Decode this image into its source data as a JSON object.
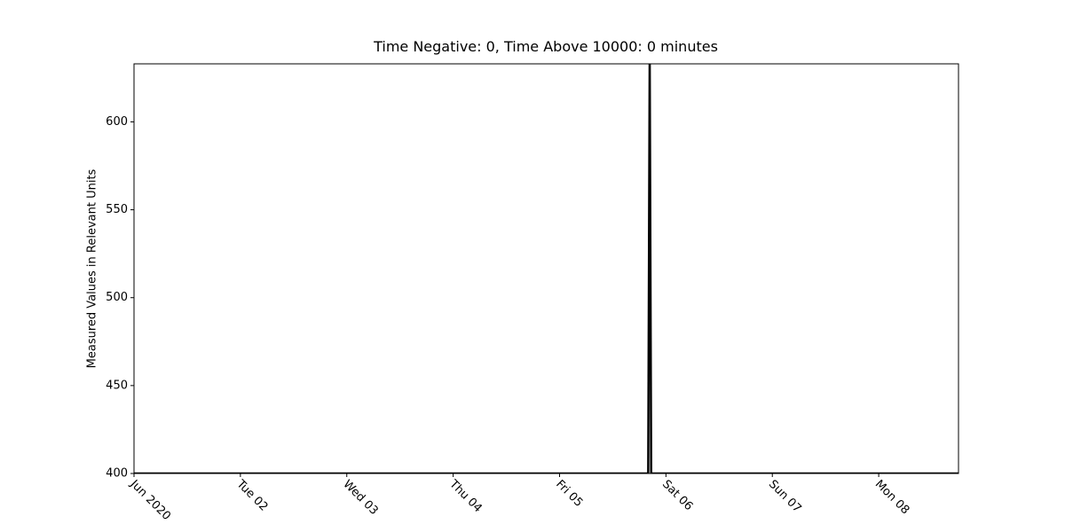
{
  "chart_data": {
    "type": "line",
    "title": "Time Negative: 0, Time Above 10000: 0 minutes",
    "y_label": "Measured Values in Relevant Units",
    "x": [
      "2020-06-01T00:00",
      "2020-06-05T20:00",
      "2020-06-05T20:20",
      "2020-06-05T20:40",
      "2020-06-08T18:00"
    ],
    "series": [
      {
        "color": "#000000",
        "values": [
          400,
          400,
          640,
          400,
          400
        ]
      }
    ],
    "xlim": [
      "2020-06-01T00:00",
      "2020-06-08T18:00"
    ],
    "xticks": [
      {
        "value": "2020-06-01T00:00",
        "label": "Jun 2020"
      },
      {
        "value": "2020-06-02T00:00",
        "label": "Tue 02"
      },
      {
        "value": "2020-06-03T00:00",
        "label": "Wed 03"
      },
      {
        "value": "2020-06-04T00:00",
        "label": "Thu 04"
      },
      {
        "value": "2020-06-05T00:00",
        "label": "Fri 05"
      },
      {
        "value": "2020-06-06T00:00",
        "label": "Sat 06"
      },
      {
        "value": "2020-06-07T00:00",
        "label": "Sun 07"
      },
      {
        "value": "2020-06-08T00:00",
        "label": "Mon 08"
      }
    ],
    "ylim": [
      400,
      633
    ],
    "yticks": [
      400,
      450,
      500,
      550,
      600
    ]
  }
}
